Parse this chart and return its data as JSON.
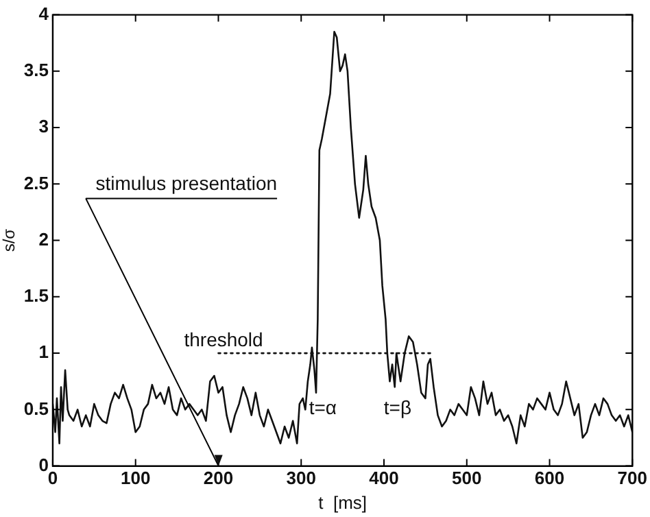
{
  "chart_data": {
    "type": "line",
    "xlabel": "t  [ms]",
    "ylabel": "s/σ",
    "xlim": [
      0,
      700
    ],
    "xticks": [
      0,
      100,
      200,
      300,
      400,
      500,
      600,
      700
    ],
    "ylim": [
      0,
      4
    ],
    "yticks": [
      0,
      0.5,
      1,
      1.5,
      2,
      2.5,
      3,
      3.5,
      4
    ],
    "grid": false,
    "legend": false,
    "marker": "none",
    "annotations": [
      "stimulus presentation",
      "t=α",
      "t=β"
    ],
    "series": [
      {
        "color": "#111111",
        "line_style": "solid",
        "x": [
          0,
          3,
          5,
          8,
          10,
          12,
          15,
          18,
          20,
          25,
          30,
          35,
          40,
          45,
          50,
          55,
          60,
          65,
          70,
          75,
          80,
          85,
          90,
          95,
          100,
          105,
          110,
          115,
          120,
          125,
          130,
          135,
          140,
          145,
          150,
          155,
          160,
          165,
          170,
          175,
          180,
          185,
          190,
          195,
          200,
          205,
          210,
          215,
          220,
          225,
          230,
          235,
          240,
          245,
          250,
          255,
          260,
          265,
          270,
          275,
          280,
          285,
          290,
          295,
          298,
          302,
          305,
          308,
          311,
          313,
          316,
          318,
          320,
          322,
          325,
          330,
          335,
          340,
          343,
          347,
          350,
          353,
          356,
          360,
          365,
          370,
          375,
          378,
          381,
          385,
          390,
          395,
          398,
          402,
          404,
          407,
          410,
          413,
          415,
          418,
          420,
          425,
          430,
          435,
          440,
          445,
          450,
          453,
          456,
          460,
          465,
          470,
          475,
          480,
          485,
          490,
          495,
          500,
          505,
          510,
          515,
          520,
          525,
          530,
          535,
          540,
          545,
          550,
          555,
          560,
          565,
          570,
          575,
          580,
          585,
          590,
          595,
          600,
          605,
          610,
          615,
          620,
          625,
          630,
          635,
          640,
          645,
          650,
          655,
          660,
          665,
          670,
          675,
          680,
          685,
          690,
          695,
          700
        ],
        "values": [
          0.55,
          0.3,
          0.6,
          0.2,
          0.7,
          0.4,
          0.85,
          0.5,
          0.45,
          0.4,
          0.5,
          0.35,
          0.45,
          0.35,
          0.55,
          0.45,
          0.4,
          0.38,
          0.55,
          0.65,
          0.6,
          0.72,
          0.6,
          0.5,
          0.3,
          0.35,
          0.5,
          0.55,
          0.72,
          0.6,
          0.65,
          0.55,
          0.7,
          0.5,
          0.45,
          0.6,
          0.5,
          0.55,
          0.5,
          0.45,
          0.5,
          0.4,
          0.75,
          0.8,
          0.65,
          0.7,
          0.45,
          0.3,
          0.45,
          0.55,
          0.7,
          0.6,
          0.45,
          0.65,
          0.45,
          0.35,
          0.5,
          0.4,
          0.3,
          0.2,
          0.35,
          0.25,
          0.4,
          0.2,
          0.55,
          0.6,
          0.5,
          0.75,
          0.9,
          1.05,
          0.85,
          0.65,
          1.3,
          2.8,
          2.9,
          3.1,
          3.3,
          3.85,
          3.8,
          3.5,
          3.55,
          3.65,
          3.5,
          3.0,
          2.5,
          2.2,
          2.45,
          2.75,
          2.5,
          2.3,
          2.2,
          2.0,
          1.6,
          1.3,
          1.0,
          0.75,
          0.9,
          0.7,
          1.0,
          0.85,
          0.75,
          1.0,
          1.15,
          1.1,
          0.9,
          0.65,
          0.6,
          0.9,
          0.95,
          0.7,
          0.45,
          0.35,
          0.4,
          0.5,
          0.45,
          0.55,
          0.5,
          0.45,
          0.7,
          0.6,
          0.45,
          0.75,
          0.55,
          0.65,
          0.45,
          0.5,
          0.4,
          0.45,
          0.35,
          0.2,
          0.45,
          0.35,
          0.55,
          0.5,
          0.6,
          0.55,
          0.5,
          0.65,
          0.5,
          0.45,
          0.55,
          0.75,
          0.6,
          0.45,
          0.55,
          0.25,
          0.3,
          0.45,
          0.55,
          0.45,
          0.6,
          0.55,
          0.45,
          0.4,
          0.45,
          0.35,
          0.45,
          0.3
        ]
      },
      {
        "name": "threshold",
        "color": "#111111",
        "line_style": "dotted",
        "x": [
          200,
          460
        ],
        "values": [
          1,
          1
        ]
      }
    ]
  }
}
